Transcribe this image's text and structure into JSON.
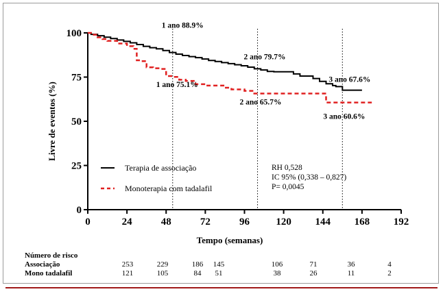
{
  "chart_data": {
    "type": "line",
    "xlabel": "Tempo (semanas)",
    "ylabel": "Livre de eventos (%)",
    "xlim": [
      0,
      192
    ],
    "ylim": [
      0,
      100
    ],
    "x_ticks": [
      "0",
      "24",
      "48",
      "72",
      "96",
      "120",
      "144",
      "168",
      "192"
    ],
    "y_ticks": [
      "0",
      "25",
      "50",
      "75",
      "100"
    ],
    "series": [
      {
        "name": "Terapia de associação",
        "color": "#000000",
        "style": "solid",
        "x": [
          0,
          2,
          6,
          10,
          14,
          18,
          22,
          26,
          30,
          34,
          38,
          42,
          46,
          50,
          54,
          58,
          62,
          66,
          70,
          74,
          78,
          82,
          86,
          90,
          94,
          98,
          102,
          106,
          110,
          114,
          118,
          122,
          126,
          130,
          134,
          138,
          142,
          146,
          150,
          152,
          156,
          160,
          164,
          168
        ],
        "y": [
          100,
          99.2,
          98.4,
          97.6,
          96.8,
          96.0,
          95.2,
          94.4,
          93.4,
          92.4,
          91.6,
          91.0,
          90.0,
          88.9,
          88.0,
          87.2,
          86.6,
          86.0,
          85.2,
          84.4,
          83.8,
          83.2,
          82.6,
          82.0,
          81.4,
          80.6,
          79.7,
          79.0,
          78.2,
          78.0,
          78.0,
          78.0,
          76.8,
          75.6,
          75.6,
          74.2,
          72.6,
          71.2,
          70.2,
          69.6,
          67.6,
          67.6,
          67.6,
          67.6
        ]
      },
      {
        "name": "Monoterapia com tadalafil",
        "color": "#e02020",
        "style": "dashed",
        "x": [
          0,
          3,
          6,
          9,
          12,
          18,
          24,
          28,
          30,
          33,
          36,
          40,
          44,
          48,
          52,
          56,
          60,
          66,
          72,
          80,
          84,
          88,
          96,
          102,
          106,
          112,
          118,
          124,
          130,
          138,
          142,
          146,
          150,
          156,
          160,
          166,
          170,
          174
        ],
        "y": [
          100,
          99.0,
          97.5,
          96.5,
          95.5,
          94.0,
          92.5,
          91.0,
          84.5,
          84.0,
          80.5,
          80.0,
          79.6,
          75.6,
          75.1,
          73.5,
          72.8,
          71.0,
          70.2,
          70.2,
          69.0,
          68.0,
          67.2,
          65.7,
          65.7,
          65.7,
          65.7,
          65.7,
          65.7,
          65.7,
          65.7,
          60.6,
          60.6,
          60.6,
          60.6,
          60.6,
          60.6,
          60.6
        ]
      }
    ],
    "annotations": [
      {
        "text": "1 ano 88.9%",
        "x": 52,
        "y": 88.9
      },
      {
        "text": "1 ano 75.1%",
        "x": 52,
        "y": 75.1
      },
      {
        "text": "2 ano 79.7%",
        "x": 104,
        "y": 79.7
      },
      {
        "text": "2 ano 65.7%",
        "x": 104,
        "y": 65.7
      },
      {
        "text": "3 ano 67.6%",
        "x": 156,
        "y": 67.6
      },
      {
        "text": "3 ano 60.6%",
        "x": 156,
        "y": 60.6
      }
    ],
    "reference_lines_x": [
      52,
      104,
      156
    ],
    "stats_text": [
      "RH 0,528",
      "IC 95% (0,338 – 0,827)",
      "P= 0,0045"
    ],
    "legend_position": "bottom-left"
  },
  "risk_table": {
    "title": "Número de risco",
    "rows": [
      {
        "label": "Associação",
        "values": [
          "253",
          "229",
          "186",
          "145",
          "106",
          "71",
          "36",
          "4"
        ]
      },
      {
        "label": "Mono tadalafil",
        "values": [
          "121",
          "105",
          "84",
          "51",
          "38",
          "26",
          "11",
          "2"
        ]
      }
    ]
  }
}
